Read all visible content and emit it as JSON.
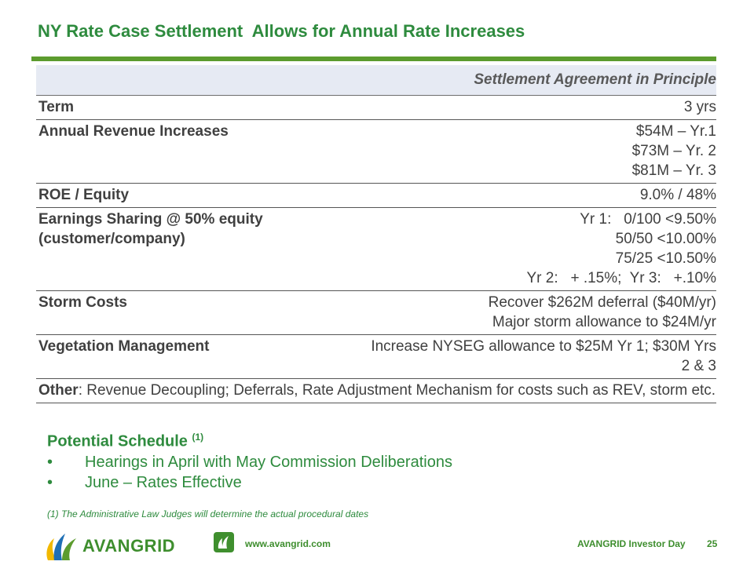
{
  "title": "NY Rate Case Settlement  Allows for Annual Rate Increases",
  "table": {
    "header": "Settlement Agreement in Principle",
    "rows": [
      {
        "label": "Term",
        "values": [
          "3 yrs"
        ]
      },
      {
        "label": "Annual Revenue Increases",
        "values": [
          "$54M – Yr.1",
          "$73M – Yr. 2",
          "$81M – Yr. 3"
        ]
      },
      {
        "label": "ROE / Equity",
        "values": [
          "9.0% / 48%"
        ]
      },
      {
        "label": "Earnings Sharing @ 50% equity\n(customer/company)",
        "values": [
          "Yr 1:   0/100 <9.50%",
          "50/50 <10.00%",
          "75/25 <10.50%",
          "Yr 2:   + .15%;  Yr 3:   +.10%"
        ]
      },
      {
        "label": "Storm Costs",
        "values": [
          "Recover $262M deferral ($40M/yr)",
          "Major storm allowance to $24M/yr"
        ]
      },
      {
        "label": "Vegetation Management",
        "values": [
          "Increase NYSEG allowance to $25M Yr 1; $30M Yrs",
          "2 & 3"
        ]
      }
    ],
    "other": {
      "label": "Other",
      "text": ":  Revenue Decoupling; Deferrals, Rate Adjustment Mechanism for costs such as REV, storm etc."
    }
  },
  "schedule": {
    "heading": "Potential Schedule ",
    "superscript": "(1)",
    "bullets": [
      "Hearings in April with May Commission Deliberations",
      "June – Rates Effective"
    ],
    "bullet_char": "•"
  },
  "footnote": "(1) The Administrative Law Judges will determine the actual procedural dates",
  "footer": {
    "logo_text": "AVANGRID",
    "url": "www.avangrid.com",
    "event": "AVANGRID Investor Day",
    "page": "25"
  },
  "colors": {
    "brand_green": "#2E8B3E",
    "rule_green": "#5C9C2E",
    "header_fill": "#E6EAF3",
    "logo_blue": "#1F6FB5",
    "logo_yellow": "#F2B800"
  }
}
